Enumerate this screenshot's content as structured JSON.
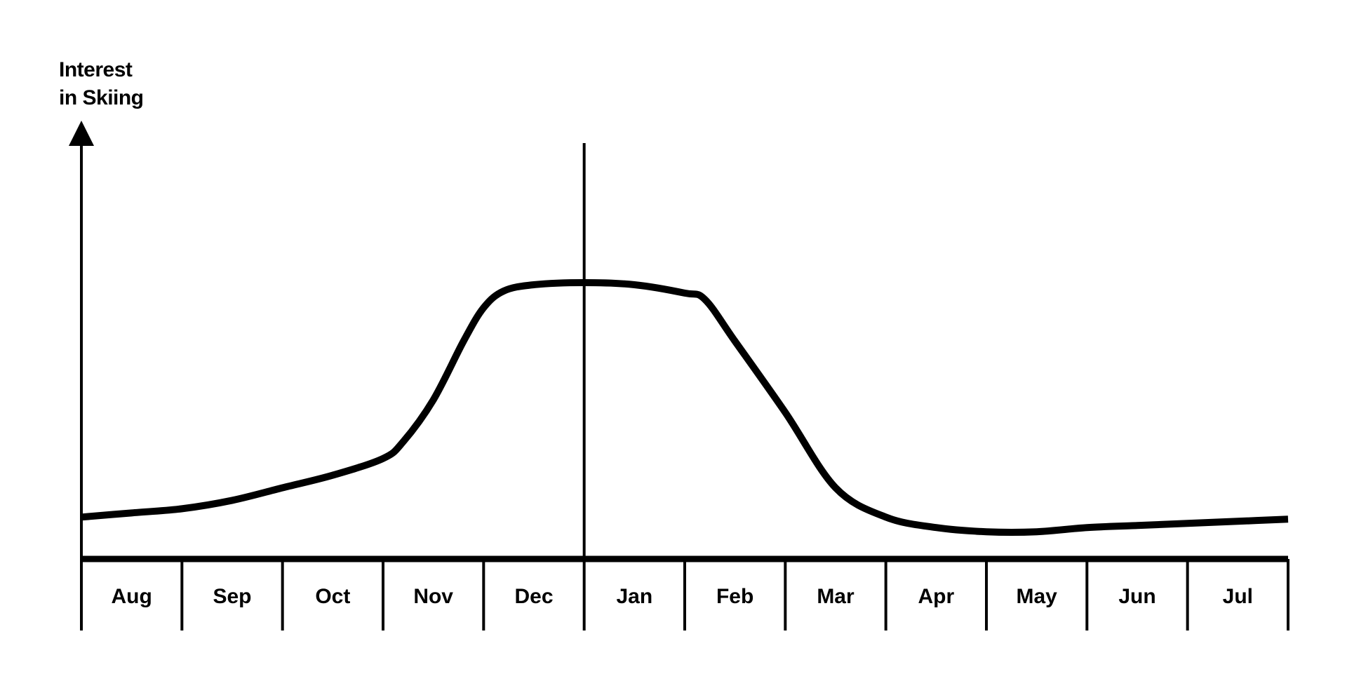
{
  "chart_data": {
    "type": "line",
    "title": "",
    "xlabel": "",
    "ylabel_lines": [
      "Interest",
      "in Skiing"
    ],
    "categories": [
      "Aug",
      "Sep",
      "Oct",
      "Nov",
      "Dec",
      "Jan",
      "Feb",
      "Mar",
      "Apr",
      "May",
      "Jun",
      "Jul"
    ],
    "x": [
      0,
      0.5,
      1,
      1.5,
      2,
      2.5,
      3,
      3.2,
      3.5,
      3.8,
      4,
      4.2,
      4.5,
      5,
      5.5,
      6,
      6.2,
      6.5,
      7,
      7.5,
      8,
      8.5,
      9,
      9.5,
      10,
      10.5,
      11,
      11.5,
      12
    ],
    "series": [
      {
        "values": [
          10,
          11,
          12,
          14,
          17,
          20,
          24,
          28,
          38,
          52,
          60,
          64,
          65.5,
          66,
          65.5,
          63.5,
          62,
          52,
          35,
          17,
          10,
          7.5,
          6.5,
          6.5,
          7.5,
          8,
          8.5,
          9,
          9.5
        ]
      }
    ],
    "reference_line_x": 5,
    "ylim": [
      0,
      100
    ],
    "xlim": [
      0,
      12
    ],
    "grid": false,
    "legend": "none"
  }
}
